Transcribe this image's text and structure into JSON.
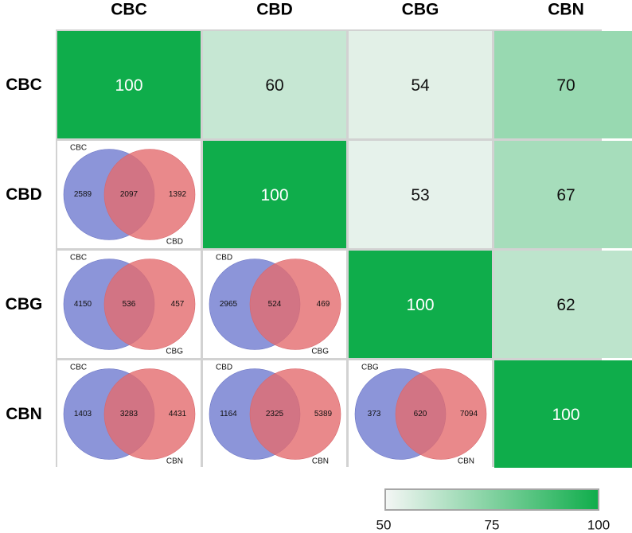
{
  "chart_data": {
    "type": "heatmap",
    "title": "",
    "labels": [
      "CBC",
      "CBD",
      "CBG",
      "CBN"
    ],
    "matrix": [
      [
        100,
        60,
        54,
        70
      ],
      [
        null,
        100,
        53,
        67
      ],
      [
        null,
        null,
        100,
        62
      ],
      [
        null,
        null,
        null,
        100
      ]
    ],
    "venn_cells": [
      {
        "row": 1,
        "col": 0,
        "left_label": "CBC",
        "right_label": "CBD",
        "left_only": "2589",
        "both": "2097",
        "right_only": "1392"
      },
      {
        "row": 2,
        "col": 0,
        "left_label": "CBC",
        "right_label": "CBG",
        "left_only": "4150",
        "both": "536",
        "right_only": "457"
      },
      {
        "row": 2,
        "col": 1,
        "left_label": "CBD",
        "right_label": "CBG",
        "left_only": "2965",
        "both": "524",
        "right_only": "469"
      },
      {
        "row": 3,
        "col": 0,
        "left_label": "CBC",
        "right_label": "CBN",
        "left_only": "1403",
        "both": "3283",
        "right_only": "4431"
      },
      {
        "row": 3,
        "col": 1,
        "left_label": "CBD",
        "right_label": "CBN",
        "left_only": "1164",
        "both": "2325",
        "right_only": "5389"
      },
      {
        "row": 3,
        "col": 2,
        "left_label": "CBG",
        "right_label": "CBN",
        "left_only": "373",
        "both": "620",
        "right_only": "7094"
      }
    ],
    "colorbar": {
      "min": 50,
      "max": 100,
      "ticks": [
        "50",
        "75",
        "100"
      ],
      "low_color": "#f4f6f5",
      "high_color": "#0fad4b"
    },
    "venn_colors": {
      "left": "#6f7bd0",
      "right": "#e46b6e",
      "overlap": "#9e4f6e"
    },
    "grid": true,
    "legend": "bottom-right colorbar"
  }
}
